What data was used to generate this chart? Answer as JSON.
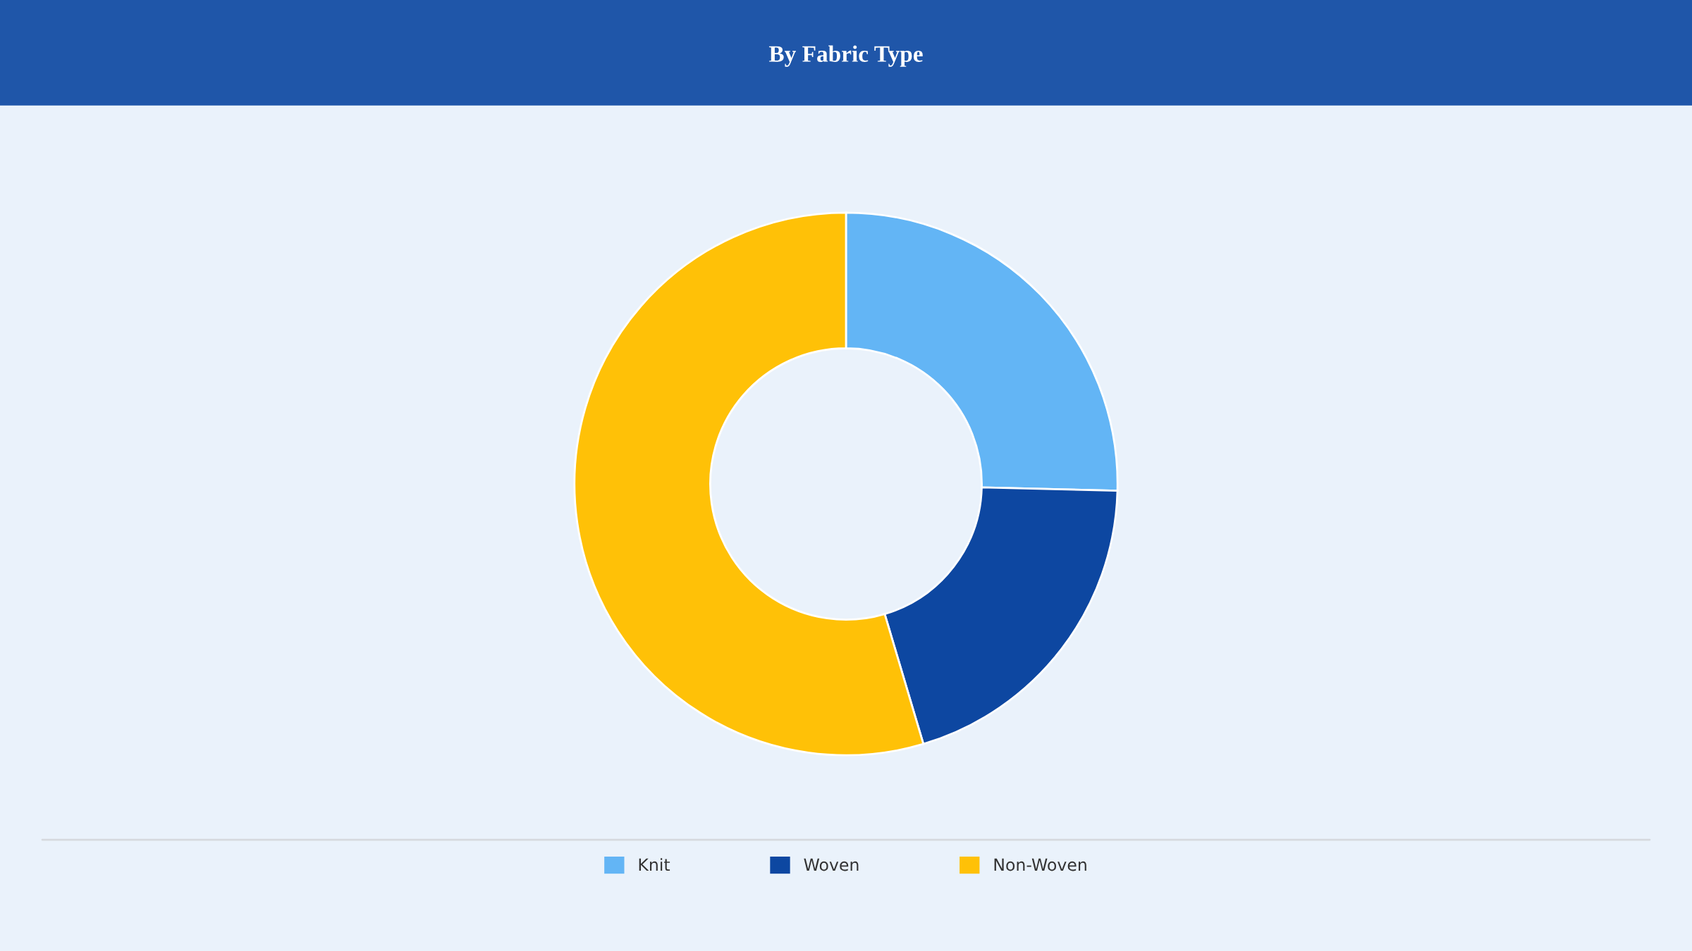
{
  "chart_data": {
    "type": "donut",
    "title": "By Fabric Type",
    "categories": [
      "Knit",
      "Woven",
      "Non-Woven"
    ],
    "values": [
      25.4,
      20,
      54.6
    ],
    "colors": [
      "#63b5f5",
      "#0d47a1",
      "#ffc107"
    ],
    "legend": "bottom"
  }
}
